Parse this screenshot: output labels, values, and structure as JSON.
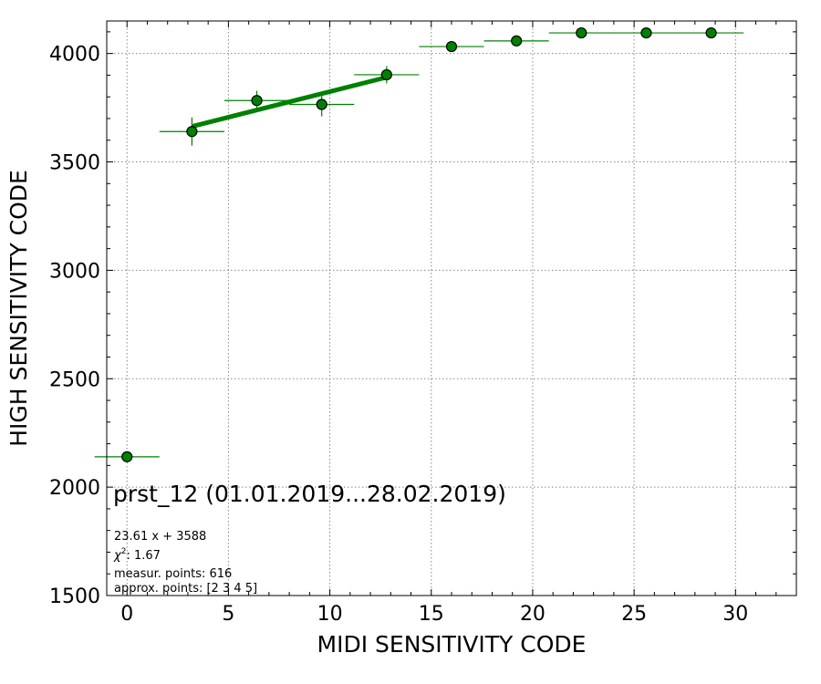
{
  "chart_data": {
    "type": "scatter",
    "xlabel": "MIDI SENSITIVITY CODE",
    "ylabel": "HIGH SENSITIVITY CODE",
    "xlim": [
      -1,
      33
    ],
    "ylim": [
      1500,
      4150
    ],
    "x_ticks": [
      0,
      5,
      10,
      15,
      20,
      25,
      30
    ],
    "y_ticks": [
      1500,
      2000,
      2500,
      3000,
      3500,
      4000
    ],
    "grid": true,
    "color": "#008000",
    "points": [
      {
        "x": 0.0,
        "y": 2140,
        "xerr": 1.6,
        "yerr": 0
      },
      {
        "x": 3.2,
        "y": 3640,
        "xerr": 1.6,
        "yerr": 65
      },
      {
        "x": 6.4,
        "y": 3783,
        "xerr": 1.6,
        "yerr": 45
      },
      {
        "x": 9.6,
        "y": 3765,
        "xerr": 1.6,
        "yerr": 55
      },
      {
        "x": 12.8,
        "y": 3902,
        "xerr": 1.6,
        "yerr": 40
      },
      {
        "x": 16.0,
        "y": 4032,
        "xerr": 1.6,
        "yerr": 0
      },
      {
        "x": 19.2,
        "y": 4058,
        "xerr": 1.6,
        "yerr": 0
      },
      {
        "x": 22.4,
        "y": 4095,
        "xerr": 1.6,
        "yerr": 0
      },
      {
        "x": 25.6,
        "y": 4095,
        "xerr": 1.6,
        "yerr": 0
      },
      {
        "x": 28.8,
        "y": 4095,
        "xerr": 1.6,
        "yerr": 0
      }
    ],
    "fit_line": {
      "x_start": 3.2,
      "x_end": 12.8,
      "slope": 23.61,
      "intercept": 3588
    },
    "annotation": {
      "title": "prst_12 (01.01.2019...28.02.2019)",
      "equation": "23.61 x + 3588",
      "chi2_prefix": "χ",
      "chi2_sup": "2",
      "chi2_value": ": 1.67",
      "measured": "measur. points: 616",
      "approx": "approx. points: [2 3 4 5]"
    }
  }
}
